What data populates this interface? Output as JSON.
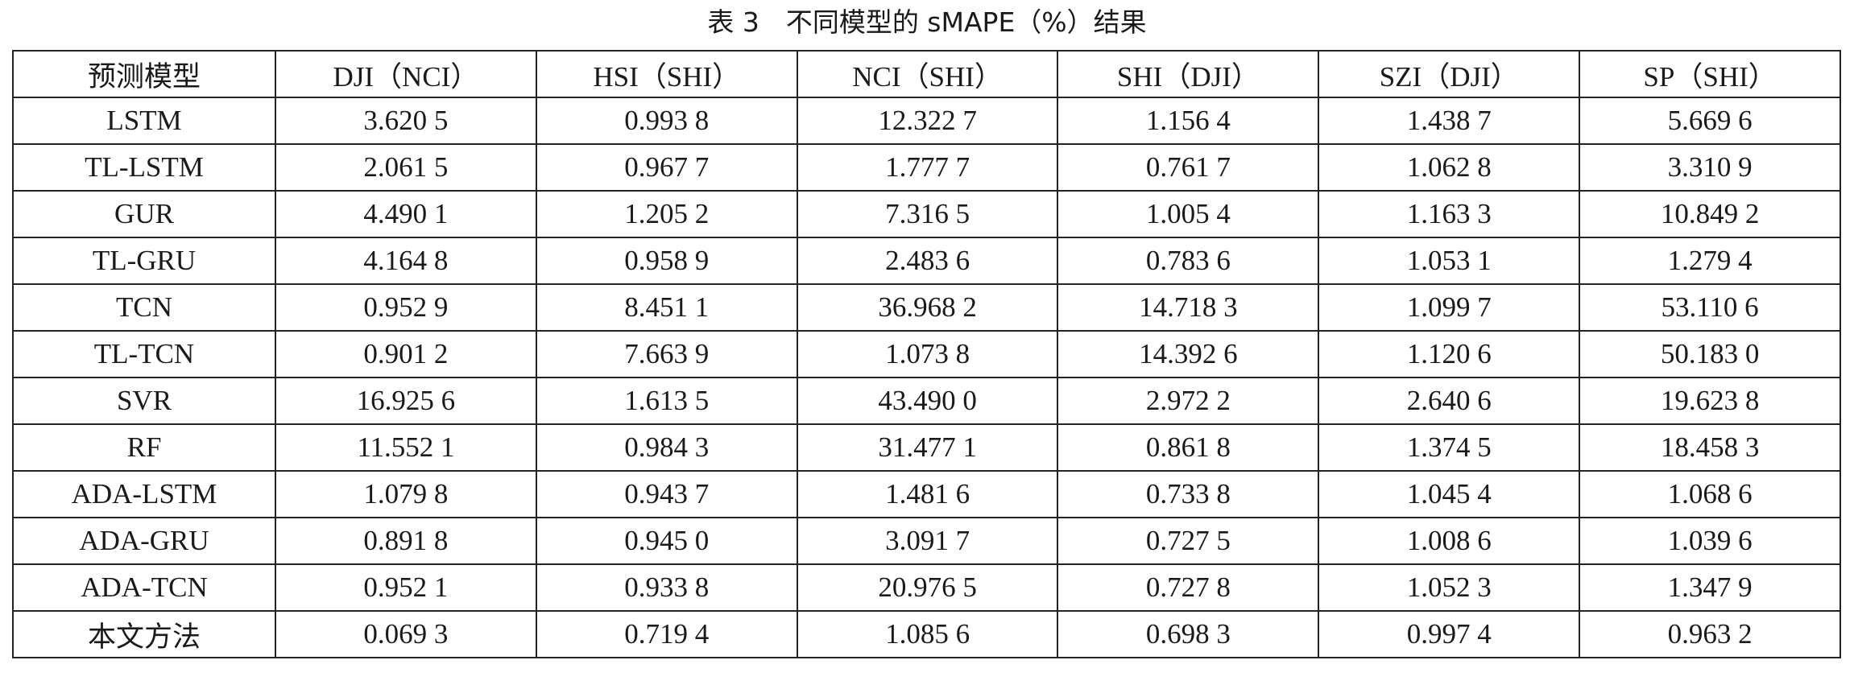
{
  "title": "表 3　不同模型的 sMAPE（%）结果",
  "table": {
    "header": [
      "预测模型",
      "DJI（NCI）",
      "HSI（SHI）",
      "NCI（SHI）",
      "SHI（DJI）",
      "SZI（DJI）",
      "SP（SHI）"
    ],
    "rows": [
      [
        "LSTM",
        "3.620 5",
        "0.993 8",
        "12.322 7",
        "1.156 4",
        "1.438 7",
        "5.669 6"
      ],
      [
        "TL-LSTM",
        "2.061 5",
        "0.967 7",
        "1.777 7",
        "0.761 7",
        "1.062 8",
        "3.310 9"
      ],
      [
        "GUR",
        "4.490 1",
        "1.205 2",
        "7.316 5",
        "1.005 4",
        "1.163 3",
        "10.849 2"
      ],
      [
        "TL-GRU",
        "4.164 8",
        "0.958 9",
        "2.483 6",
        "0.783 6",
        "1.053 1",
        "1.279 4"
      ],
      [
        "TCN",
        "0.952 9",
        "8.451 1",
        "36.968 2",
        "14.718 3",
        "1.099 7",
        "53.110 6"
      ],
      [
        "TL-TCN",
        "0.901 2",
        "7.663 9",
        "1.073 8",
        "14.392 6",
        "1.120 6",
        "50.183 0"
      ],
      [
        "SVR",
        "16.925 6",
        "1.613 5",
        "43.490 0",
        "2.972 2",
        "2.640 6",
        "19.623 8"
      ],
      [
        "RF",
        "11.552 1",
        "0.984 3",
        "31.477 1",
        "0.861 8",
        "1.374 5",
        "18.458 3"
      ],
      [
        "ADA-LSTM",
        "1.079 8",
        "0.943 7",
        "1.481 6",
        "0.733 8",
        "1.045 4",
        "1.068 6"
      ],
      [
        "ADA-GRU",
        "0.891 8",
        "0.945 0",
        "3.091 7",
        "0.727 5",
        "1.008 6",
        "1.039 6"
      ],
      [
        "ADA-TCN",
        "0.952 1",
        "0.933 8",
        "20.976 5",
        "0.727 8",
        "1.052 3",
        "1.347 9"
      ],
      [
        "本文方法",
        "0.069 3",
        "0.719 4",
        "1.085 6",
        "0.698 3",
        "0.997 4",
        "0.963 2"
      ]
    ]
  }
}
